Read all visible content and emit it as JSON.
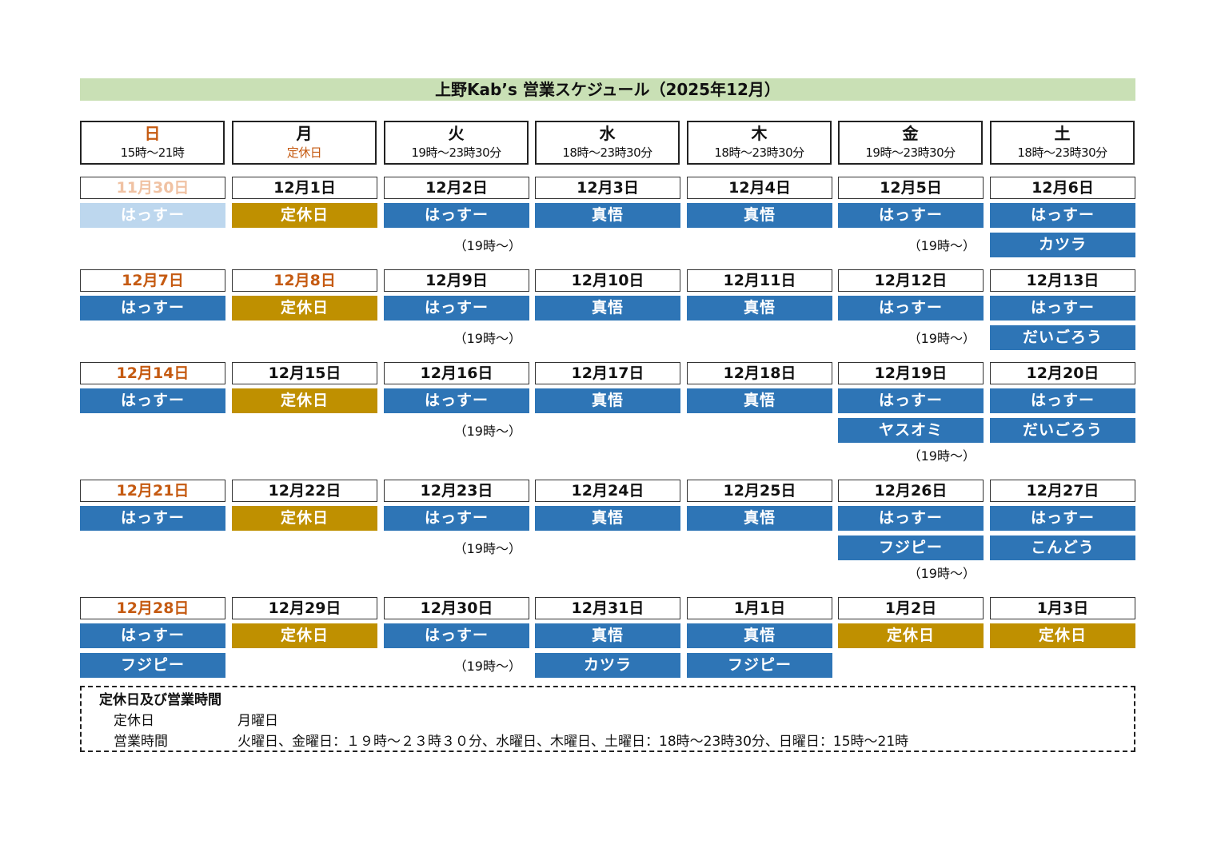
{
  "title": "上野Kab’s 営業スケジュール（2025年12月）",
  "colors": {
    "staff": "#2e75b6",
    "closed": "#bf9000",
    "pale": "#bdd7ee",
    "sunday": "#c55a11",
    "title_bg": "#c9e0b5"
  },
  "weekdays": [
    {
      "name": "日",
      "hours": "15時〜21時"
    },
    {
      "name": "月",
      "hours": "定休日"
    },
    {
      "name": "火",
      "hours": "19時〜23時30分"
    },
    {
      "name": "水",
      "hours": "18時〜23時30分"
    },
    {
      "name": "木",
      "hours": "18時〜23時30分"
    },
    {
      "name": "金",
      "hours": "19時〜23時30分"
    },
    {
      "name": "土",
      "hours": "18時〜23時30分"
    }
  ],
  "weeks": [
    {
      "days": [
        {
          "date": "11月30日",
          "style": "faint",
          "entries": [
            {
              "label": "はっすー",
              "type": "pale"
            }
          ]
        },
        {
          "date": "12月1日",
          "entries": [
            {
              "label": "定休日",
              "type": "closed"
            }
          ]
        },
        {
          "date": "12月2日",
          "entries": [
            {
              "label": "はっすー",
              "type": "staff"
            }
          ],
          "note": "（19時〜）"
        },
        {
          "date": "12月3日",
          "entries": [
            {
              "label": "真悟",
              "type": "staff"
            }
          ]
        },
        {
          "date": "12月4日",
          "entries": [
            {
              "label": "真悟",
              "type": "staff"
            }
          ]
        },
        {
          "date": "12月5日",
          "entries": [
            {
              "label": "はっすー",
              "type": "staff"
            }
          ],
          "note": "（19時〜）"
        },
        {
          "date": "12月6日",
          "entries": [
            {
              "label": "はっすー",
              "type": "staff"
            },
            {
              "label": "カツラ",
              "type": "staff"
            }
          ]
        }
      ]
    },
    {
      "days": [
        {
          "date": "12月7日",
          "style": "red",
          "entries": [
            {
              "label": "はっすー",
              "type": "staff"
            }
          ]
        },
        {
          "date": "12月8日",
          "style": "red",
          "entries": [
            {
              "label": "定休日",
              "type": "closed"
            }
          ]
        },
        {
          "date": "12月9日",
          "entries": [
            {
              "label": "はっすー",
              "type": "staff"
            }
          ],
          "note": "（19時〜）"
        },
        {
          "date": "12月10日",
          "entries": [
            {
              "label": "真悟",
              "type": "staff"
            }
          ]
        },
        {
          "date": "12月11日",
          "entries": [
            {
              "label": "真悟",
              "type": "staff"
            }
          ]
        },
        {
          "date": "12月12日",
          "entries": [
            {
              "label": "はっすー",
              "type": "staff"
            }
          ],
          "note": "（19時〜）"
        },
        {
          "date": "12月13日",
          "entries": [
            {
              "label": "はっすー",
              "type": "staff"
            },
            {
              "label": "だいごろう",
              "type": "staff"
            }
          ]
        }
      ]
    },
    {
      "days": [
        {
          "date": "12月14日",
          "style": "red",
          "entries": [
            {
              "label": "はっすー",
              "type": "staff"
            }
          ]
        },
        {
          "date": "12月15日",
          "entries": [
            {
              "label": "定休日",
              "type": "closed"
            }
          ]
        },
        {
          "date": "12月16日",
          "entries": [
            {
              "label": "はっすー",
              "type": "staff"
            }
          ],
          "note": "（19時〜）"
        },
        {
          "date": "12月17日",
          "entries": [
            {
              "label": "真悟",
              "type": "staff"
            }
          ]
        },
        {
          "date": "12月18日",
          "entries": [
            {
              "label": "真悟",
              "type": "staff"
            }
          ]
        },
        {
          "date": "12月19日",
          "entries": [
            {
              "label": "はっすー",
              "type": "staff"
            },
            {
              "label": "ヤスオミ",
              "type": "staff"
            }
          ],
          "note": "（19時〜）"
        },
        {
          "date": "12月20日",
          "entries": [
            {
              "label": "はっすー",
              "type": "staff"
            },
            {
              "label": "だいごろう",
              "type": "staff"
            }
          ]
        }
      ]
    },
    {
      "days": [
        {
          "date": "12月21日",
          "style": "red",
          "entries": [
            {
              "label": "はっすー",
              "type": "staff"
            }
          ]
        },
        {
          "date": "12月22日",
          "entries": [
            {
              "label": "定休日",
              "type": "closed"
            }
          ]
        },
        {
          "date": "12月23日",
          "entries": [
            {
              "label": "はっすー",
              "type": "staff"
            }
          ],
          "note": "（19時〜）"
        },
        {
          "date": "12月24日",
          "entries": [
            {
              "label": "真悟",
              "type": "staff"
            }
          ]
        },
        {
          "date": "12月25日",
          "entries": [
            {
              "label": "真悟",
              "type": "staff"
            }
          ]
        },
        {
          "date": "12月26日",
          "entries": [
            {
              "label": "はっすー",
              "type": "staff"
            },
            {
              "label": "フジピー",
              "type": "staff"
            }
          ],
          "note": "（19時〜）"
        },
        {
          "date": "12月27日",
          "entries": [
            {
              "label": "はっすー",
              "type": "staff"
            },
            {
              "label": "こんどう",
              "type": "staff"
            }
          ]
        }
      ]
    },
    {
      "days": [
        {
          "date": "12月28日",
          "style": "red",
          "entries": [
            {
              "label": "はっすー",
              "type": "staff"
            },
            {
              "label": "フジピー",
              "type": "staff"
            }
          ]
        },
        {
          "date": "12月29日",
          "entries": [
            {
              "label": "定休日",
              "type": "closed"
            }
          ]
        },
        {
          "date": "12月30日",
          "entries": [
            {
              "label": "はっすー",
              "type": "staff"
            }
          ],
          "note": "（19時〜）"
        },
        {
          "date": "12月31日",
          "entries": [
            {
              "label": "真悟",
              "type": "staff"
            },
            {
              "label": "カツラ",
              "type": "staff"
            }
          ]
        },
        {
          "date": "1月1日",
          "entries": [
            {
              "label": "真悟",
              "type": "staff"
            },
            {
              "label": "フジピー",
              "type": "staff"
            }
          ]
        },
        {
          "date": "1月2日",
          "entries": [
            {
              "label": "定休日",
              "type": "closed"
            }
          ]
        },
        {
          "date": "1月3日",
          "entries": [
            {
              "label": "定休日",
              "type": "closed"
            }
          ]
        }
      ]
    }
  ],
  "legend": {
    "title": "定休日及び営業時間",
    "closed_label": "定休日",
    "closed_value": "月曜日",
    "hours_label": "営業時間",
    "hours_value": "火曜日、金曜日：１９時〜２３時３０分、水曜日、木曜日、土曜日：18時〜23時30分、日曜日：15時〜21時"
  }
}
